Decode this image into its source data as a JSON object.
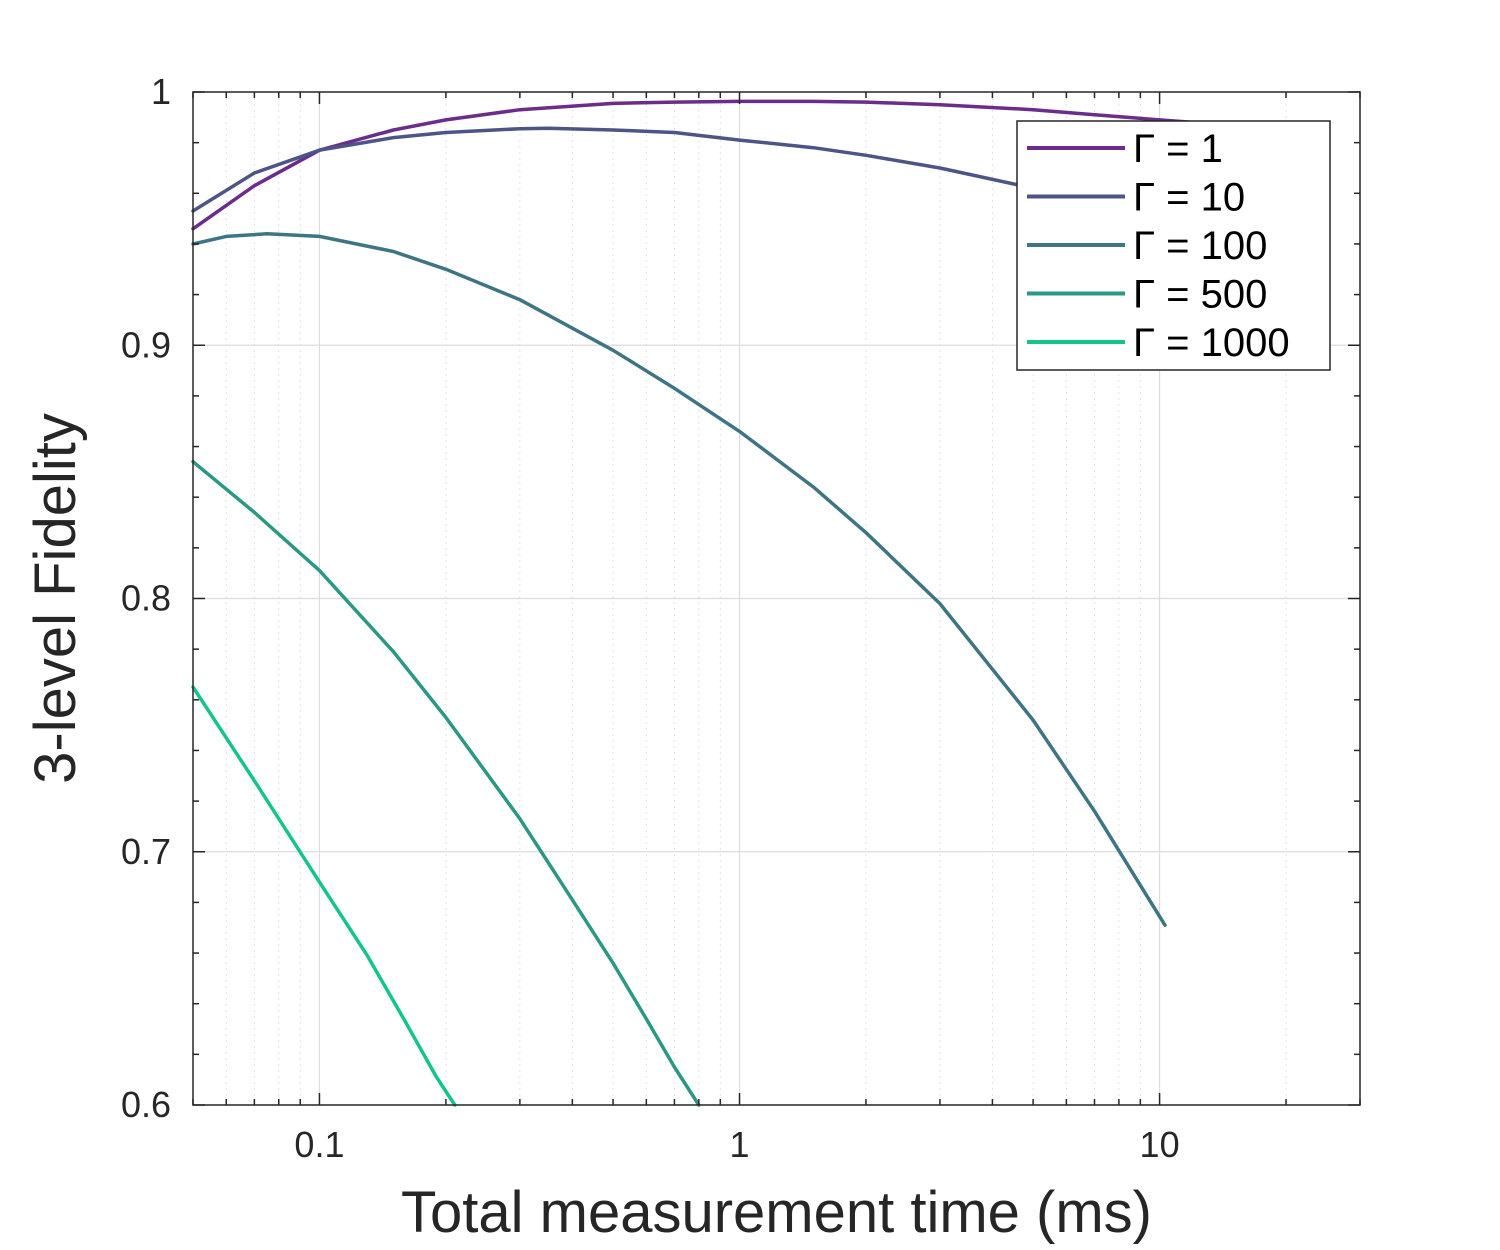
{
  "chart_data": {
    "type": "line",
    "xlabel": "Total measurement time (ms)",
    "ylabel": "3-level Fidelity",
    "xscale": "log",
    "xlim": [
      0.05,
      30
    ],
    "ylim": [
      0.6,
      1.0
    ],
    "x_ticks": [
      {
        "value": 0.1,
        "label": "0.1"
      },
      {
        "value": 1,
        "label": "1"
      },
      {
        "value": 10,
        "label": "10"
      }
    ],
    "y_ticks": [
      {
        "value": 0.6,
        "label": "0.6"
      },
      {
        "value": 0.7,
        "label": "0.7"
      },
      {
        "value": 0.8,
        "label": "0.8"
      },
      {
        "value": 0.9,
        "label": "0.9"
      },
      {
        "value": 1.0,
        "label": "1"
      }
    ],
    "grid": true,
    "legend_position": "top-right",
    "series": [
      {
        "name": "Γ = 1",
        "color": "#6b2c8c",
        "x": [
          0.05,
          0.07,
          0.1,
          0.15,
          0.2,
          0.3,
          0.5,
          0.7,
          1.0,
          1.5,
          2,
          3,
          5,
          7,
          10,
          12
        ],
        "y": [
          0.946,
          0.963,
          0.977,
          0.985,
          0.989,
          0.993,
          0.9955,
          0.996,
          0.9963,
          0.9963,
          0.996,
          0.995,
          0.993,
          0.991,
          0.989,
          0.988
        ]
      },
      {
        "name": "Γ = 10",
        "color": "#4c5586",
        "x": [
          0.05,
          0.07,
          0.1,
          0.15,
          0.2,
          0.3,
          0.35,
          0.5,
          0.7,
          1.0,
          1.5,
          2,
          3,
          5,
          7,
          10
        ],
        "y": [
          0.953,
          0.968,
          0.977,
          0.982,
          0.984,
          0.9855,
          0.9857,
          0.985,
          0.984,
          0.981,
          0.978,
          0.975,
          0.97,
          0.962,
          0.956,
          0.948
        ]
      },
      {
        "name": "Γ = 100",
        "color": "#3e7584",
        "x": [
          0.05,
          0.06,
          0.075,
          0.1,
          0.15,
          0.2,
          0.3,
          0.5,
          0.7,
          1.0,
          1.5,
          2,
          3,
          5,
          7,
          10.3
        ],
        "y": [
          0.94,
          0.943,
          0.944,
          0.943,
          0.937,
          0.93,
          0.918,
          0.898,
          0.883,
          0.866,
          0.844,
          0.826,
          0.798,
          0.752,
          0.716,
          0.671
        ]
      },
      {
        "name": "Γ = 500",
        "color": "#2b9883",
        "x": [
          0.05,
          0.07,
          0.1,
          0.15,
          0.2,
          0.3,
          0.4,
          0.5,
          0.6,
          0.7,
          0.8
        ],
        "y": [
          0.854,
          0.834,
          0.811,
          0.779,
          0.753,
          0.713,
          0.681,
          0.656,
          0.634,
          0.615,
          0.6
        ]
      },
      {
        "name": "Γ = 1000",
        "color": "#14c686",
        "x": [
          0.05,
          0.07,
          0.1,
          0.13,
          0.16,
          0.19,
          0.21
        ],
        "y": [
          0.765,
          0.728,
          0.688,
          0.659,
          0.633,
          0.611,
          0.6
        ]
      }
    ]
  }
}
